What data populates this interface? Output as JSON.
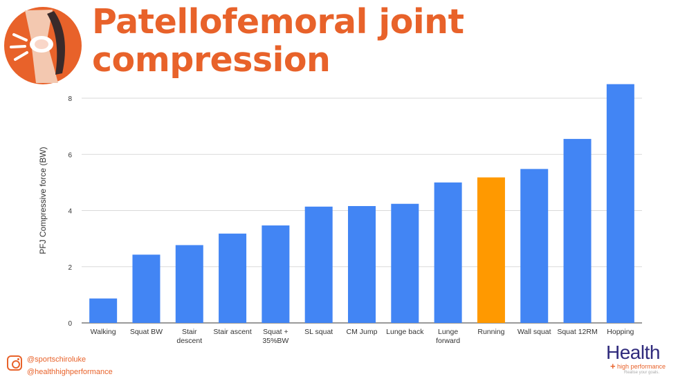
{
  "title": "Patellofemoral joint compression",
  "social": {
    "handles": [
      "@sportschiroluke",
      "@healthhighperformance"
    ]
  },
  "brand": {
    "name": "Health",
    "sub": "high performance",
    "tagline": "Realise your goals."
  },
  "colors": {
    "title": "#e8622a",
    "bar": "#4285f4",
    "highlight": "#ff9900",
    "axis_text": "#333333"
  },
  "chart_data": {
    "type": "bar",
    "ylabel": "PFJ Compressive force (BW)",
    "xlabel": "",
    "ylim": [
      0,
      8
    ],
    "yticks": [
      0,
      2,
      4,
      6,
      8
    ],
    "grid": true,
    "categories": [
      "Walking",
      "Squat BW",
      "Stair descent",
      "Stair ascent",
      "Squat + 35%BW",
      "SL squat",
      "CM Jump",
      "Lunge back",
      "Lunge forward",
      "Running",
      "Wall squat",
      "Squat 12RM",
      "Hopping"
    ],
    "category_lines": [
      [
        "Walking"
      ],
      [
        "Squat BW"
      ],
      [
        "Stair",
        "descent"
      ],
      [
        "Stair ascent"
      ],
      [
        "Squat +",
        "35%BW"
      ],
      [
        "SL squat"
      ],
      [
        "CM Jump"
      ],
      [
        "Lunge back"
      ],
      [
        "Lunge",
        "forward"
      ],
      [
        "Running"
      ],
      [
        "Wall squat"
      ],
      [
        "Squat 12RM"
      ],
      [
        "Hopping"
      ]
    ],
    "values": [
      0.87,
      2.43,
      2.77,
      3.18,
      3.47,
      4.14,
      4.16,
      4.24,
      5.0,
      5.18,
      5.48,
      6.55,
      8.5
    ],
    "highlight": "Running"
  }
}
